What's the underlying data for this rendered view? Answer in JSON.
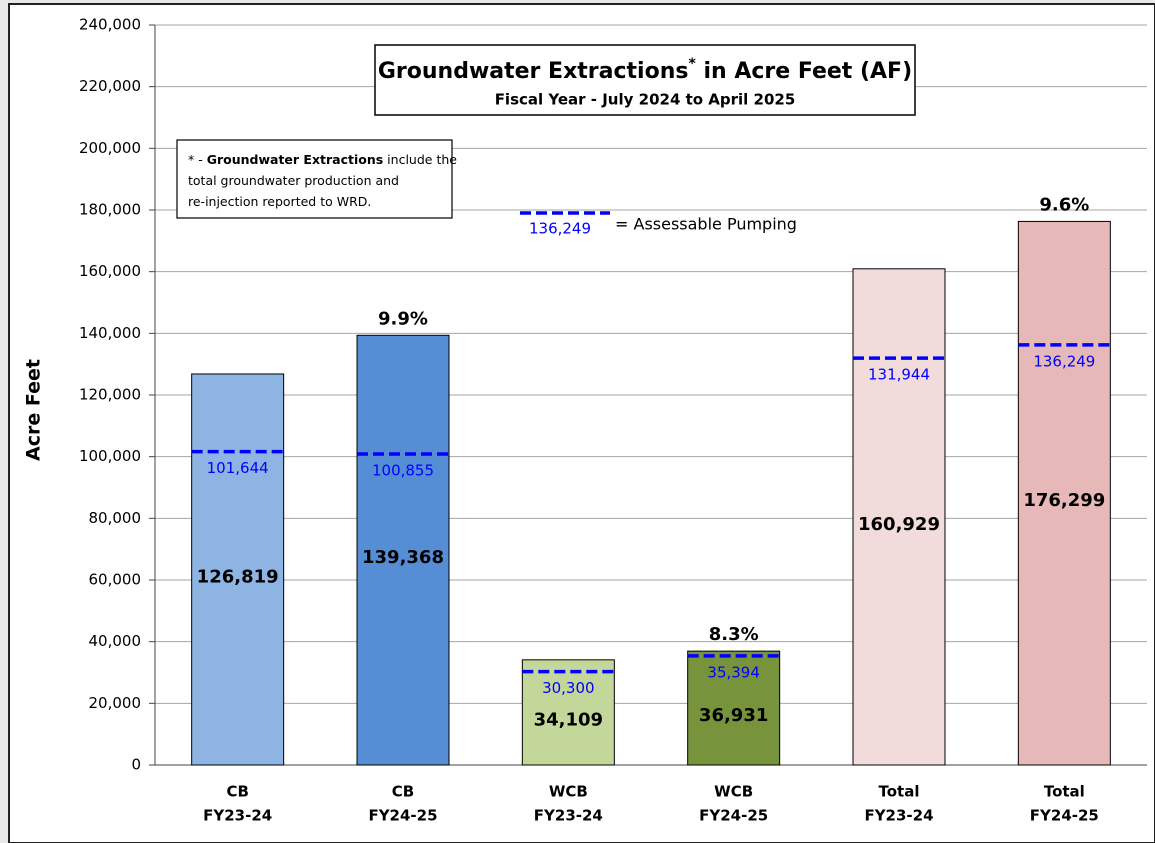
{
  "chart_data": {
    "type": "bar",
    "title": [
      "Groundwater Extractions",
      "*",
      " in Acre Feet (AF)"
    ],
    "subtitle": "Fiscal Year - July 2024 to April 2025",
    "y_label": "Acre Feet",
    "note": [
      [
        "* - ",
        "Groundwater Extractions",
        " include the"
      ],
      [
        "total groundwater production and"
      ],
      [
        "re-injection reported to WRD."
      ]
    ],
    "legend": {
      "sample_label": "136,249",
      "text": "= Assessable Pumping",
      "color": "#0000ff"
    },
    "categories": [
      [
        "CB",
        "FY23-24"
      ],
      [
        "CB",
        "FY24-25"
      ],
      [
        "WCB",
        "FY23-24"
      ],
      [
        "WCB",
        "FY24-25"
      ],
      [
        "Total",
        "FY23-24"
      ],
      [
        "Total",
        "FY24-25"
      ]
    ],
    "values": [
      126819,
      139368,
      34109,
      36931,
      160929,
      176299
    ],
    "value_labels": [
      "126,819",
      "139,368",
      "34,109",
      "36,931",
      "160,929",
      "176,299"
    ],
    "colors": [
      "#8db4e2",
      "#558ed5",
      "#c4d79b",
      "#77933c",
      "#f2dcdb",
      "#e6b9b8"
    ],
    "assessable_pumping": {
      "values": [
        101644,
        100855,
        30300,
        35394,
        131944,
        136249
      ],
      "value_labels": [
        "101,644",
        "100,855",
        "30,300",
        "35,394",
        "131,944",
        "136,249"
      ],
      "color": "#0000ff"
    },
    "percent_labels": [
      null,
      "9.9%",
      null,
      "8.3%",
      null,
      "9.6%"
    ],
    "ylim": [
      0,
      240000
    ],
    "yticks": [
      0,
      {
        "value": 20000,
        "label": "20,000"
      },
      {
        "value": 40000,
        "label": "40,000"
      },
      {
        "value": 60000,
        "label": "60,000"
      },
      {
        "value": 80000,
        "label": "80,000"
      },
      {
        "value": 100000,
        "label": "100,000"
      },
      {
        "value": 120000,
        "label": "120,000"
      },
      {
        "value": 140000,
        "label": "140,000"
      },
      {
        "value": 160000,
        "label": "160,000"
      },
      {
        "value": 180000,
        "label": "180,000"
      },
      {
        "value": 200000,
        "label": "200,000"
      },
      {
        "value": 220000,
        "label": "220,000"
      },
      {
        "value": 240000,
        "label": "240,000"
      }
    ],
    "grid": true
  }
}
